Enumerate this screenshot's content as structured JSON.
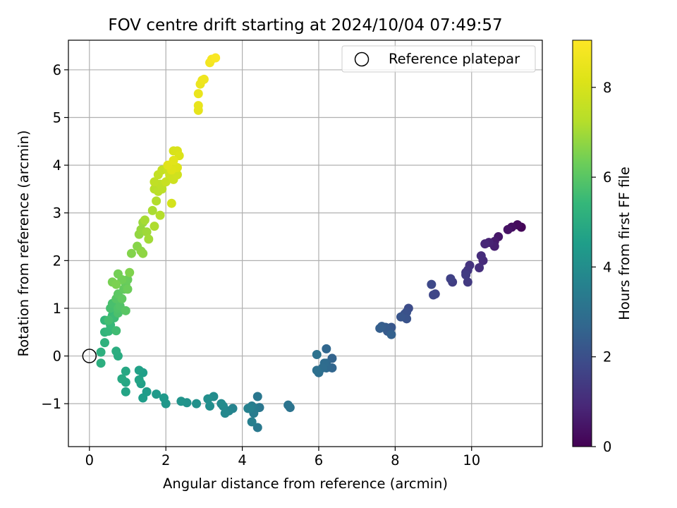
{
  "chart_data": {
    "type": "scatter",
    "title": "FOV centre drift starting at 2024/10/04 07:49:57",
    "xlabel": "Angular distance from reference (arcmin)",
    "ylabel": "Rotation from reference (arcmin)",
    "xlim": [
      -0.55,
      11.85
    ],
    "ylim": [
      -1.9,
      6.62
    ],
    "xticks": [
      "0",
      "2",
      "4",
      "6",
      "8",
      "10"
    ],
    "yticks": [
      "−1",
      "0",
      "1",
      "2",
      "3",
      "4",
      "5",
      "6"
    ],
    "grid": true,
    "legend": {
      "placement": "top-right",
      "entries": [
        "Reference platepar"
      ]
    },
    "reference_point": {
      "x": 0,
      "y": 0
    },
    "colorbar": {
      "label": "Hours from first FF file",
      "colormap": "viridis",
      "range": [
        0,
        9.05
      ],
      "ticks": [
        "0",
        "2",
        "4",
        "6",
        "8"
      ]
    },
    "points_columns": [
      "x",
      "y",
      "hours"
    ],
    "points": [
      [
        11.3,
        2.7,
        0.1
      ],
      [
        11.2,
        2.75,
        0.2
      ],
      [
        11.05,
        2.7,
        0.3
      ],
      [
        10.95,
        2.65,
        0.4
      ],
      [
        10.7,
        2.5,
        0.5
      ],
      [
        10.6,
        2.4,
        0.6
      ],
      [
        10.6,
        2.3,
        0.7
      ],
      [
        10.45,
        2.38,
        0.8
      ],
      [
        10.35,
        2.35,
        0.9
      ],
      [
        10.3,
        2.0,
        1.0
      ],
      [
        10.25,
        2.1,
        1.05
      ],
      [
        10.2,
        1.85,
        1.1
      ],
      [
        9.95,
        1.9,
        1.2
      ],
      [
        9.9,
        1.8,
        1.3
      ],
      [
        9.85,
        1.75,
        1.35
      ],
      [
        9.9,
        1.55,
        1.4
      ],
      [
        9.85,
        1.7,
        1.45
      ],
      [
        9.5,
        1.55,
        1.5
      ],
      [
        9.45,
        1.62,
        1.6
      ],
      [
        9.05,
        1.3,
        1.7
      ],
      [
        9.0,
        1.28,
        1.75
      ],
      [
        8.95,
        1.5,
        1.8
      ],
      [
        8.35,
        1.0,
        1.9
      ],
      [
        8.3,
        0.92,
        2.0
      ],
      [
        8.25,
        0.88,
        2.05
      ],
      [
        8.3,
        0.78,
        2.1
      ],
      [
        8.15,
        0.82,
        2.15
      ],
      [
        7.9,
        0.6,
        2.2
      ],
      [
        7.85,
        0.55,
        2.25
      ],
      [
        7.8,
        0.52,
        2.3
      ],
      [
        7.75,
        0.6,
        2.35
      ],
      [
        7.65,
        0.62,
        2.4
      ],
      [
        7.6,
        0.58,
        2.45
      ],
      [
        7.9,
        0.45,
        2.5
      ],
      [
        6.35,
        -0.05,
        2.6
      ],
      [
        6.35,
        -0.25,
        2.65
      ],
      [
        6.2,
        0.15,
        2.7
      ],
      [
        6.2,
        -0.15,
        2.75
      ],
      [
        6.2,
        -0.25,
        2.8
      ],
      [
        6.15,
        -0.15,
        2.85
      ],
      [
        6.1,
        -0.25,
        2.9
      ],
      [
        6.0,
        -0.35,
        2.95
      ],
      [
        5.95,
        -0.3,
        3.0
      ],
      [
        5.95,
        0.03,
        3.05
      ],
      [
        5.25,
        -1.08,
        3.1
      ],
      [
        5.2,
        -1.03,
        3.15
      ],
      [
        4.45,
        -1.08,
        3.2
      ],
      [
        4.4,
        -0.85,
        3.25
      ],
      [
        4.4,
        -1.5,
        3.3
      ],
      [
        4.35,
        -1.1,
        3.35
      ],
      [
        4.3,
        -1.2,
        3.4
      ],
      [
        4.25,
        -1.05,
        3.45
      ],
      [
        4.25,
        -1.38,
        3.5
      ],
      [
        4.2,
        -1.1,
        3.55
      ],
      [
        4.15,
        -1.1,
        3.6
      ],
      [
        3.75,
        -1.1,
        3.65
      ],
      [
        3.65,
        -1.15,
        3.7
      ],
      [
        3.6,
        -1.15,
        3.75
      ],
      [
        3.55,
        -1.2,
        3.8
      ],
      [
        3.5,
        -1.05,
        3.85
      ],
      [
        3.45,
        -1.0,
        3.9
      ],
      [
        3.25,
        -0.85,
        3.95
      ],
      [
        3.15,
        -1.05,
        4.0
      ],
      [
        3.1,
        -0.9,
        4.05
      ],
      [
        2.8,
        -1.0,
        4.1
      ],
      [
        2.55,
        -0.98,
        4.15
      ],
      [
        2.4,
        -0.95,
        4.2
      ],
      [
        2.0,
        -1.0,
        4.3
      ],
      [
        1.95,
        -0.88,
        4.35
      ],
      [
        1.75,
        -0.8,
        4.4
      ],
      [
        1.5,
        -0.75,
        4.45
      ],
      [
        1.4,
        -0.88,
        4.5
      ],
      [
        1.4,
        -0.35,
        4.55
      ],
      [
        1.35,
        -0.58,
        4.6
      ],
      [
        1.3,
        -0.3,
        4.65
      ],
      [
        1.3,
        -0.5,
        4.7
      ],
      [
        0.95,
        -0.75,
        4.75
      ],
      [
        0.95,
        -0.55,
        4.8
      ],
      [
        0.95,
        -0.32,
        4.85
      ],
      [
        0.85,
        -0.48,
        4.9
      ],
      [
        0.75,
        0.0,
        5.0
      ],
      [
        0.7,
        0.1,
        5.05
      ],
      [
        0.3,
        -0.15,
        5.1
      ],
      [
        0.3,
        0.08,
        5.15
      ],
      [
        0.4,
        0.28,
        5.2
      ],
      [
        0.4,
        0.5,
        5.3
      ],
      [
        0.4,
        0.75,
        5.35
      ],
      [
        0.5,
        0.52,
        5.4
      ],
      [
        0.55,
        0.65,
        5.45
      ],
      [
        0.6,
        0.85,
        5.5
      ],
      [
        0.65,
        0.8,
        5.55
      ],
      [
        0.7,
        0.53,
        5.6
      ],
      [
        0.5,
        0.75,
        5.65
      ],
      [
        0.55,
        1.0,
        5.7
      ],
      [
        0.6,
        1.1,
        5.75
      ],
      [
        0.75,
        0.9,
        5.8
      ],
      [
        0.75,
        1.0,
        5.85
      ],
      [
        0.8,
        1.05,
        5.9
      ],
      [
        0.7,
        1.2,
        5.95
      ],
      [
        0.95,
        0.95,
        6.0
      ],
      [
        0.75,
        1.3,
        6.05
      ],
      [
        0.85,
        1.2,
        6.1
      ],
      [
        0.9,
        1.4,
        6.15
      ],
      [
        0.95,
        1.5,
        6.2
      ],
      [
        1.0,
        1.6,
        6.25
      ],
      [
        1.0,
        1.4,
        6.3
      ],
      [
        0.85,
        1.6,
        6.35
      ],
      [
        0.75,
        1.72,
        6.4
      ],
      [
        0.6,
        1.55,
        6.45
      ],
      [
        0.7,
        1.5,
        6.5
      ],
      [
        1.05,
        1.75,
        6.55
      ],
      [
        1.1,
        2.15,
        6.6
      ],
      [
        1.25,
        2.3,
        6.65
      ],
      [
        1.35,
        2.2,
        6.7
      ],
      [
        1.4,
        2.15,
        6.75
      ],
      [
        1.3,
        2.55,
        6.8
      ],
      [
        1.35,
        2.65,
        6.85
      ],
      [
        1.4,
        2.8,
        6.9
      ],
      [
        1.5,
        2.6,
        6.95
      ],
      [
        1.55,
        2.45,
        7.0
      ],
      [
        1.45,
        2.85,
        7.05
      ],
      [
        1.65,
        3.05,
        7.1
      ],
      [
        1.7,
        2.72,
        7.15
      ],
      [
        1.75,
        3.25,
        7.2
      ],
      [
        1.85,
        2.95,
        7.25
      ],
      [
        1.7,
        3.5,
        7.3
      ],
      [
        1.8,
        3.45,
        7.35
      ],
      [
        1.9,
        3.5,
        7.4
      ],
      [
        1.85,
        3.6,
        7.45
      ],
      [
        1.7,
        3.65,
        7.5
      ],
      [
        1.8,
        3.8,
        7.55
      ],
      [
        1.9,
        3.9,
        7.6
      ],
      [
        2.0,
        3.65,
        7.65
      ],
      [
        2.05,
        3.9,
        7.7
      ],
      [
        2.1,
        3.8,
        7.75
      ],
      [
        2.2,
        3.7,
        7.8
      ],
      [
        2.3,
        3.8,
        7.85
      ],
      [
        2.1,
        4.0,
        7.9
      ],
      [
        2.15,
        3.2,
        7.95
      ],
      [
        2.2,
        4.3,
        8.0
      ],
      [
        2.3,
        4.3,
        8.05
      ],
      [
        2.35,
        4.2,
        8.1
      ],
      [
        2.3,
        3.95,
        8.15
      ],
      [
        2.15,
        3.9,
        8.2
      ],
      [
        2.05,
        4.0,
        8.25
      ],
      [
        2.2,
        4.1,
        8.3
      ],
      [
        2.85,
        5.15,
        8.4
      ],
      [
        2.85,
        5.25,
        8.45
      ],
      [
        2.85,
        5.5,
        8.5
      ],
      [
        2.9,
        5.7,
        8.55
      ],
      [
        2.95,
        5.78,
        8.6
      ],
      [
        3.0,
        5.8,
        8.65
      ],
      [
        3.15,
        6.15,
        8.75
      ],
      [
        3.2,
        6.22,
        8.85
      ],
      [
        3.3,
        6.25,
        8.95
      ]
    ]
  }
}
